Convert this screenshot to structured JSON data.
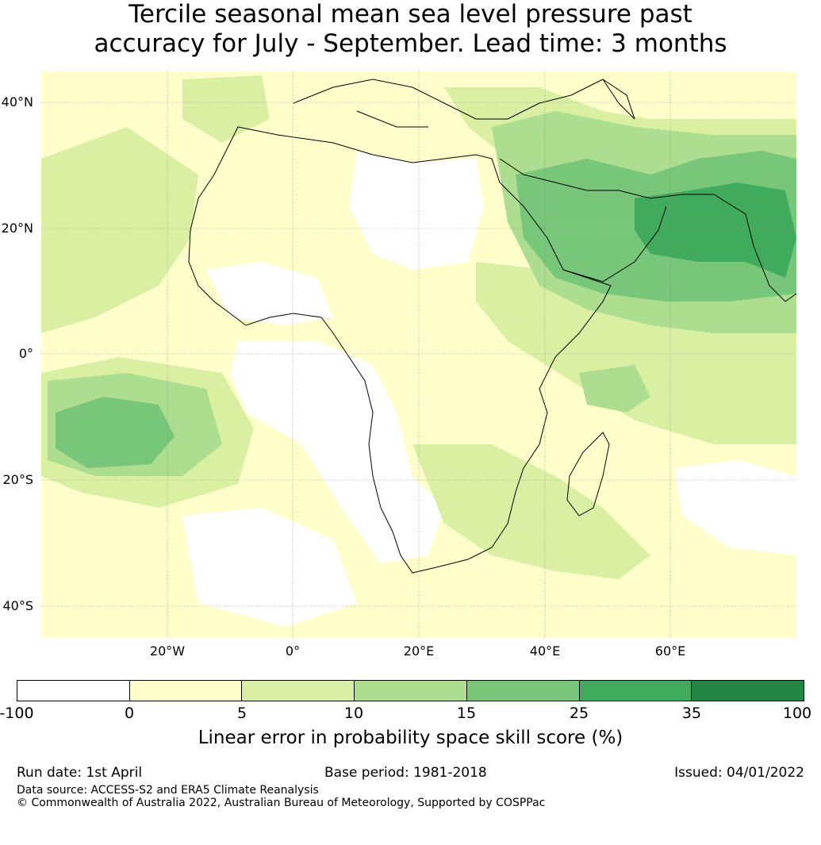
{
  "title": {
    "line1": "Tercile seasonal mean sea level pressure past",
    "line2": "accuracy for July - September. Lead time: 3 months"
  },
  "map": {
    "lat_labels": [
      "40°N",
      "20°N",
      "0°",
      "20°S",
      "40°S"
    ],
    "lon_labels": [
      "20°W",
      "0°",
      "20°E",
      "40°E",
      "60°E"
    ],
    "extent": {
      "lon": [
        -40,
        80
      ],
      "lat": [
        -45,
        45
      ]
    },
    "gridlines": true
  },
  "colorbar": {
    "ticks": [
      "-100",
      "0",
      "5",
      "10",
      "15",
      "25",
      "35",
      "100"
    ],
    "colors": [
      "#ffffff",
      "#ffffcc",
      "#d9f0a3",
      "#addd8e",
      "#78c679",
      "#41ab5d",
      "#238443"
    ],
    "label": "Linear error in probability space skill score (%)"
  },
  "footer": {
    "run_date": "Run date: 1st April",
    "base_period": "Base period: 1981-2018",
    "issued": "Issued: 04/01/2022",
    "data_source": "Data source: ACCESS-S2 and ERA5 Climate Reanalysis",
    "copyright": "© Commonwealth of Australia 2022, Australian Bureau of Meteorology, Supported by COSPPac"
  }
}
